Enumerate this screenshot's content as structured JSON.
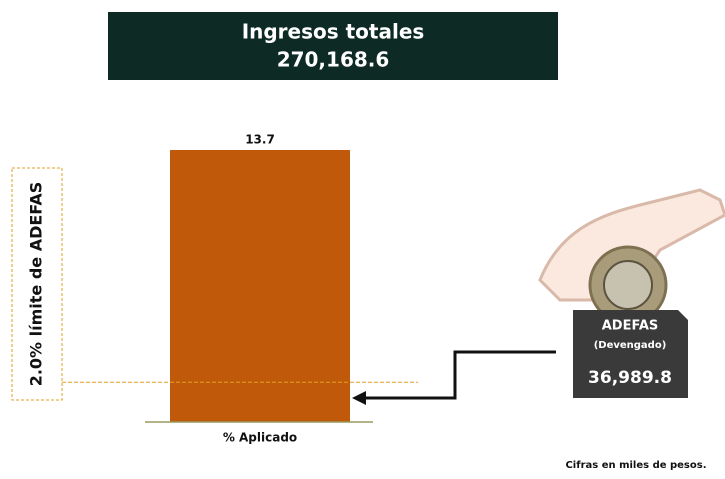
{
  "chart_data": {
    "type": "bar",
    "title": "Ingresos totales",
    "subtitle": "270,168.6",
    "categories": [
      "% Aplicado"
    ],
    "values": [
      13.7
    ],
    "color": "#c05a0a",
    "reference_line": {
      "value": 2.0,
      "label": "2.0% límite de ADEFAS",
      "color": "#e0a020"
    },
    "callout": {
      "title": "ADEFAS",
      "subtitle": "(Devengado)",
      "value_label": "36,989.8"
    },
    "note": "Cifras en miles de pesos."
  }
}
